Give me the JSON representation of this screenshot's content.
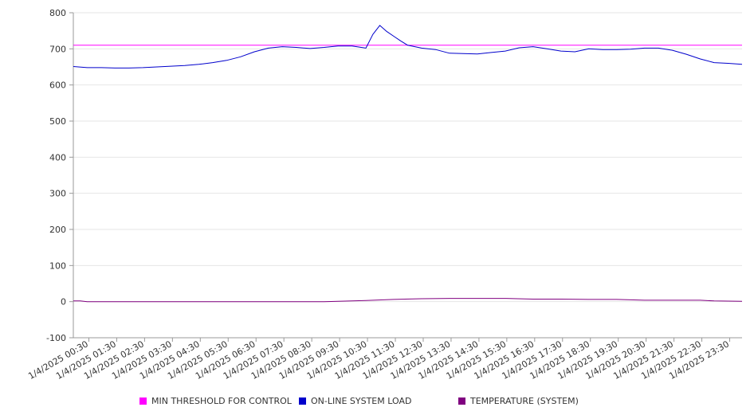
{
  "chart_data": {
    "type": "line",
    "ylim": [
      -100,
      800
    ],
    "y_ticks": [
      800,
      700,
      600,
      500,
      400,
      300,
      200,
      100,
      0,
      -100
    ],
    "x_tick_labels": [
      "1/4/2025 00:30",
      "1/4/2025 01:30",
      "1/4/2025 02:30",
      "1/4/2025 03:30",
      "1/4/2025 04:30",
      "1/4/2025 05:30",
      "1/4/2025 06:30",
      "1/4/2025 07:30",
      "1/4/2025 08:30",
      "1/4/2025 09:30",
      "1/4/2025 10:30",
      "1/4/2025 11:30",
      "1/4/2025 12:30",
      "1/4/2025 13:30",
      "1/4/2025 14:30",
      "1/4/2025 15:30",
      "1/4/2025 16:30",
      "1/4/2025 17:30",
      "1/4/2025 18:30",
      "1/4/2025 19:30",
      "1/4/2025 20:30",
      "1/4/2025 21:30",
      "1/4/2025 22:30",
      "1/4/2025 23:30"
    ],
    "x_range_hours": [
      0.0,
      24.0
    ],
    "grid": "horizontal",
    "legend_position": "bottom",
    "series": [
      {
        "name": "MIN THRESHOLD FOR CONTROL",
        "color": "#ff00ff",
        "x_hours": [
          0.0,
          24.0
        ],
        "values": [
          710,
          710
        ]
      },
      {
        "name": "ON-LINE SYSTEM LOAD",
        "color": "#0000cc",
        "x_hours": [
          0.0,
          0.5,
          1.0,
          1.5,
          2.0,
          2.5,
          3.0,
          3.5,
          4.0,
          4.5,
          5.0,
          5.5,
          6.0,
          6.5,
          7.0,
          7.5,
          8.0,
          8.5,
          9.0,
          9.5,
          10.0,
          10.5,
          10.75,
          11.0,
          11.25,
          11.5,
          11.75,
          12.0,
          12.5,
          13.0,
          13.5,
          14.0,
          14.5,
          15.0,
          15.5,
          16.0,
          16.5,
          17.0,
          17.5,
          18.0,
          18.5,
          19.0,
          19.5,
          20.0,
          20.5,
          21.0,
          21.5,
          22.0,
          22.5,
          23.0,
          23.5,
          24.0
        ],
        "values": [
          651,
          648,
          648,
          647,
          647,
          648,
          650,
          652,
          654,
          657,
          662,
          668,
          678,
          692,
          702,
          706,
          704,
          701,
          704,
          708,
          708,
          702,
          740,
          765,
          748,
          735,
          722,
          710,
          702,
          698,
          688,
          687,
          686,
          690,
          694,
          703,
          706,
          700,
          694,
          692,
          700,
          698,
          698,
          699,
          702,
          702,
          696,
          685,
          672,
          662,
          660,
          657
        ]
      },
      {
        "name": "TEMPERATURE (SYSTEM)",
        "color": "#800080",
        "x_hours": [
          0.0,
          0.25,
          0.5,
          2.0,
          4.0,
          6.0,
          8.0,
          9.0,
          9.5,
          10.5,
          11.5,
          12.5,
          13.5,
          14.5,
          15.5,
          16.5,
          17.5,
          18.5,
          19.5,
          20.5,
          21.5,
          22.5,
          23.0,
          24.0
        ],
        "values": [
          2,
          2,
          0,
          0,
          0,
          0,
          0,
          0,
          1,
          3,
          6,
          8,
          9,
          9,
          9,
          7,
          7,
          6,
          6,
          4,
          4,
          4,
          2,
          1
        ]
      }
    ]
  }
}
